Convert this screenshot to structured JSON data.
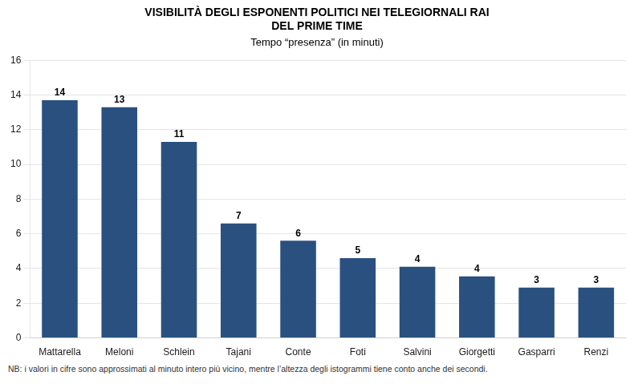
{
  "chart_data": {
    "type": "bar",
    "title": [
      "VISIBILITÀ DEGLI ESPONENTI POLITICI NEI TELEGIORNALI RAI",
      "DEL PRIME TIME"
    ],
    "subtitle": "Tempo “presenza” (in minuti)",
    "annotations": [
      "NB: i valori in cifre sono approssimati al minuto intero più vicino, mentre l’altezza degli istogrammi tiene conto anche dei secondi."
    ],
    "categories": [
      "Mattarella",
      "Meloni",
      "Schlein",
      "Tajani",
      "Conte",
      "Foti",
      "Salvini",
      "Giorgetti",
      "Gasparri",
      "Renzi"
    ],
    "values": [
      13.7,
      13.3,
      11.3,
      6.6,
      5.6,
      4.6,
      4.1,
      3.55,
      2.9,
      2.9
    ],
    "value_labels": [
      "14",
      "13",
      "11",
      "7",
      "6",
      "5",
      "4",
      "4",
      "3",
      "3"
    ],
    "data_labels": true,
    "color": "#2a5080",
    "ylim": [
      0,
      16
    ],
    "yticks": [
      0,
      2,
      4,
      6,
      8,
      10,
      12,
      14,
      16
    ],
    "grid": true
  }
}
